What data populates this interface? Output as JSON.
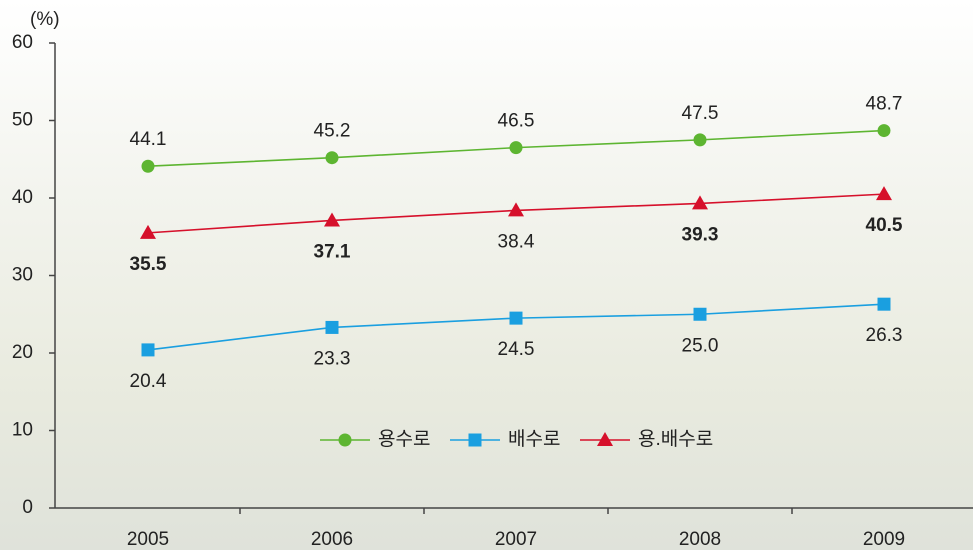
{
  "chart_data": {
    "type": "line",
    "y_label": "(%)",
    "categories": [
      "2005",
      "2006",
      "2007",
      "2008",
      "2009"
    ],
    "ylim": [
      0,
      60
    ],
    "yticks": [
      0,
      10,
      20,
      30,
      40,
      50,
      60
    ],
    "legend": "bottom",
    "series": [
      {
        "name": "용수로",
        "color": "#5db531",
        "marker": "circle",
        "values": [
          44.1,
          45.2,
          46.5,
          47.5,
          48.7
        ]
      },
      {
        "name": "배수로",
        "color": "#1a9fe0",
        "marker": "square",
        "values": [
          20.4,
          23.3,
          24.5,
          25.0,
          26.3
        ],
        "value_labels": [
          "20.4",
          "23.3",
          "24.5",
          "25.0",
          "26.3"
        ]
      },
      {
        "name": "용.배수로",
        "color": "#d6102b",
        "marker": "triangle",
        "values": [
          35.5,
          37.1,
          38.4,
          39.3,
          40.5
        ]
      }
    ]
  }
}
